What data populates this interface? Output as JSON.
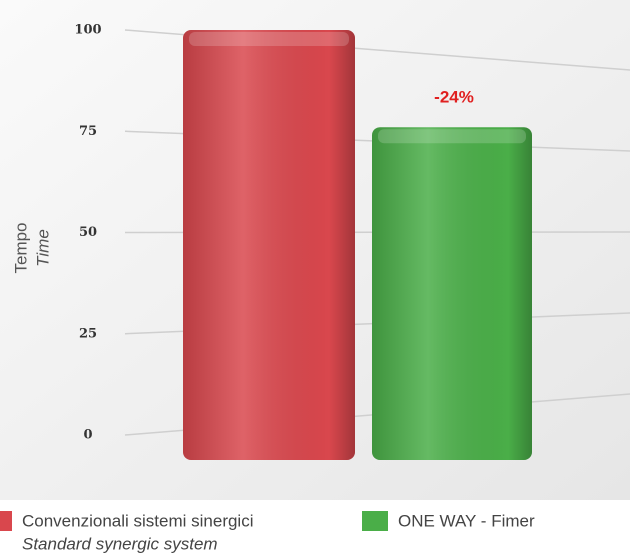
{
  "chart_data": {
    "type": "bar",
    "ylabel": "Tempo",
    "ylabel_en": "Time",
    "series": [
      {
        "name": "Convenzionali sistemi sinergici",
        "name_en": "Standard synergic system",
        "color": "#d9474d",
        "values": [
          100
        ]
      },
      {
        "name": "ONE WAY - Fimer",
        "color": "#4aae48",
        "values": [
          76
        ]
      }
    ],
    "annotation": "-24%",
    "ylim": [
      0,
      100
    ],
    "yticks": [
      0,
      25,
      50,
      75,
      100
    ],
    "grid": true
  }
}
